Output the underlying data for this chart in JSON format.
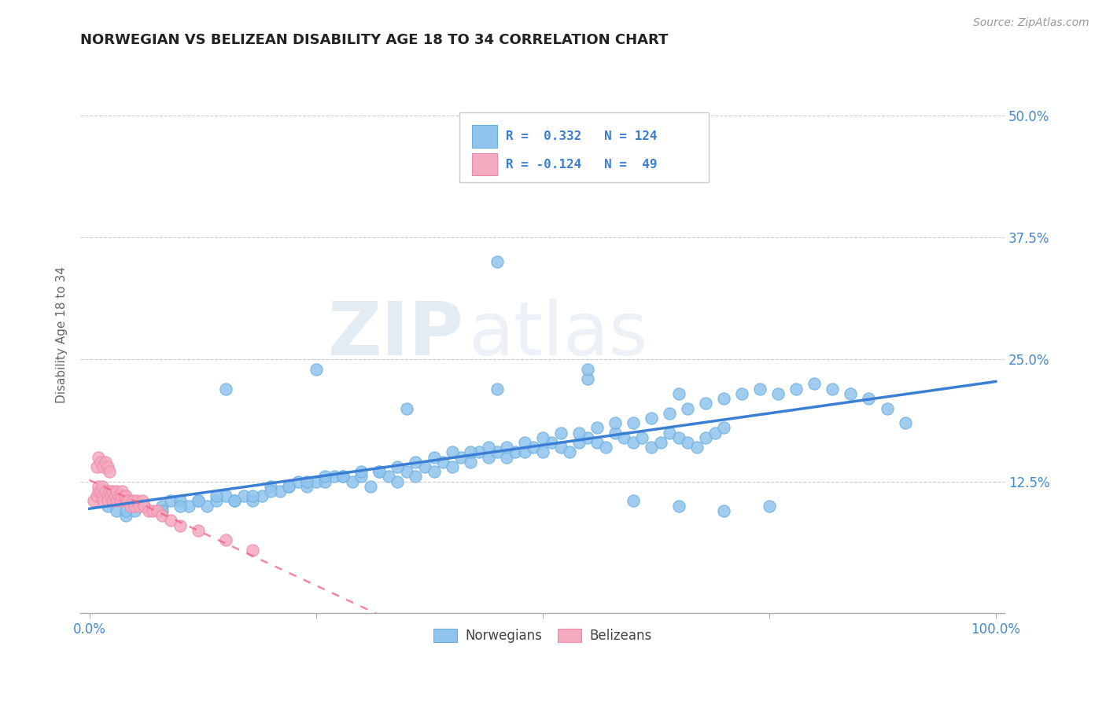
{
  "title": "NORWEGIAN VS BELIZEAN DISABILITY AGE 18 TO 34 CORRELATION CHART",
  "source": "Source: ZipAtlas.com",
  "ylabel": "Disability Age 18 to 34",
  "xlim": [
    -0.01,
    1.01
  ],
  "ylim": [
    -0.01,
    0.56
  ],
  "xticks": [
    0.0,
    0.25,
    0.5,
    0.75,
    1.0
  ],
  "xtick_labels": [
    "0.0%",
    "",
    "",
    "",
    "100.0%"
  ],
  "yticks": [
    0.0,
    0.125,
    0.25,
    0.375,
    0.5
  ],
  "ytick_labels_right": [
    "",
    "12.5%",
    "25.0%",
    "37.5%",
    "50.0%"
  ],
  "norwegian_color": "#90C4ED",
  "norwegian_edge_color": "#6AAEDE",
  "belizean_color": "#F4AABE",
  "belizean_edge_color": "#EE88AA",
  "norwegian_line_color": "#3A7FD4",
  "belizean_line_color": "#F06080",
  "R_norwegian": 0.332,
  "N_norwegian": 124,
  "R_belizean": -0.124,
  "N_belizean": 49,
  "legend_label_norwegian": "Norwegians",
  "legend_label_belizean": "Belizeans",
  "watermark_zip": "ZIP",
  "watermark_atlas": "atlas",
  "background_color": "#ffffff",
  "grid_color": "#cccccc",
  "title_color": "#222222",
  "axis_label_color": "#666666",
  "tick_label_color": "#4488CC",
  "legend_text_color": "#3A7FD4",
  "nor_x": [
    0.02,
    0.03,
    0.04,
    0.05,
    0.06,
    0.08,
    0.09,
    0.1,
    0.11,
    0.12,
    0.13,
    0.14,
    0.15,
    0.16,
    0.17,
    0.18,
    0.19,
    0.2,
    0.21,
    0.22,
    0.23,
    0.24,
    0.25,
    0.26,
    0.27,
    0.28,
    0.29,
    0.3,
    0.31,
    0.32,
    0.33,
    0.34,
    0.35,
    0.36,
    0.37,
    0.38,
    0.39,
    0.4,
    0.41,
    0.42,
    0.43,
    0.44,
    0.45,
    0.46,
    0.47,
    0.48,
    0.49,
    0.5,
    0.51,
    0.52,
    0.53,
    0.54,
    0.55,
    0.56,
    0.57,
    0.58,
    0.59,
    0.6,
    0.61,
    0.62,
    0.63,
    0.64,
    0.65,
    0.66,
    0.67,
    0.68,
    0.69,
    0.7,
    0.04,
    0.06,
    0.08,
    0.1,
    0.12,
    0.14,
    0.16,
    0.18,
    0.2,
    0.22,
    0.24,
    0.26,
    0.28,
    0.3,
    0.32,
    0.34,
    0.36,
    0.38,
    0.4,
    0.42,
    0.44,
    0.46,
    0.48,
    0.5,
    0.52,
    0.54,
    0.56,
    0.58,
    0.6,
    0.62,
    0.64,
    0.66,
    0.68,
    0.7,
    0.72,
    0.74,
    0.76,
    0.78,
    0.8,
    0.82,
    0.84,
    0.86,
    0.88,
    0.9,
    0.15,
    0.25,
    0.35,
    0.45,
    0.55,
    0.65,
    0.45,
    0.55,
    0.6,
    0.65,
    0.7,
    0.75
  ],
  "nor_y": [
    0.1,
    0.095,
    0.09,
    0.095,
    0.1,
    0.1,
    0.105,
    0.105,
    0.1,
    0.105,
    0.1,
    0.105,
    0.11,
    0.105,
    0.11,
    0.105,
    0.11,
    0.12,
    0.115,
    0.12,
    0.125,
    0.12,
    0.125,
    0.125,
    0.13,
    0.13,
    0.125,
    0.13,
    0.12,
    0.135,
    0.13,
    0.125,
    0.135,
    0.13,
    0.14,
    0.135,
    0.145,
    0.14,
    0.15,
    0.145,
    0.155,
    0.15,
    0.155,
    0.15,
    0.155,
    0.155,
    0.16,
    0.155,
    0.165,
    0.16,
    0.155,
    0.165,
    0.17,
    0.165,
    0.16,
    0.175,
    0.17,
    0.165,
    0.17,
    0.16,
    0.165,
    0.175,
    0.17,
    0.165,
    0.16,
    0.17,
    0.175,
    0.18,
    0.095,
    0.1,
    0.095,
    0.1,
    0.105,
    0.11,
    0.105,
    0.11,
    0.115,
    0.12,
    0.125,
    0.13,
    0.13,
    0.135,
    0.135,
    0.14,
    0.145,
    0.15,
    0.155,
    0.155,
    0.16,
    0.16,
    0.165,
    0.17,
    0.175,
    0.175,
    0.18,
    0.185,
    0.185,
    0.19,
    0.195,
    0.2,
    0.205,
    0.21,
    0.215,
    0.22,
    0.215,
    0.22,
    0.225,
    0.22,
    0.215,
    0.21,
    0.2,
    0.185,
    0.22,
    0.24,
    0.2,
    0.22,
    0.23,
    0.215,
    0.35,
    0.24,
    0.105,
    0.1,
    0.095,
    0.1
  ],
  "bel_x": [
    0.005,
    0.008,
    0.01,
    0.01,
    0.012,
    0.014,
    0.015,
    0.015,
    0.018,
    0.02,
    0.02,
    0.022,
    0.024,
    0.025,
    0.025,
    0.028,
    0.03,
    0.03,
    0.032,
    0.034,
    0.035,
    0.036,
    0.038,
    0.04,
    0.04,
    0.042,
    0.045,
    0.048,
    0.05,
    0.052,
    0.055,
    0.058,
    0.06,
    0.065,
    0.07,
    0.075,
    0.08,
    0.09,
    0.1,
    0.12,
    0.15,
    0.18,
    0.008,
    0.01,
    0.012,
    0.015,
    0.018,
    0.02,
    0.022
  ],
  "bel_y": [
    0.105,
    0.11,
    0.115,
    0.12,
    0.115,
    0.12,
    0.11,
    0.105,
    0.115,
    0.11,
    0.105,
    0.115,
    0.11,
    0.105,
    0.115,
    0.11,
    0.105,
    0.115,
    0.11,
    0.105,
    0.11,
    0.115,
    0.11,
    0.105,
    0.11,
    0.105,
    0.1,
    0.105,
    0.1,
    0.105,
    0.1,
    0.105,
    0.1,
    0.095,
    0.095,
    0.095,
    0.09,
    0.085,
    0.08,
    0.075,
    0.065,
    0.055,
    0.14,
    0.15,
    0.145,
    0.14,
    0.145,
    0.14,
    0.135
  ]
}
